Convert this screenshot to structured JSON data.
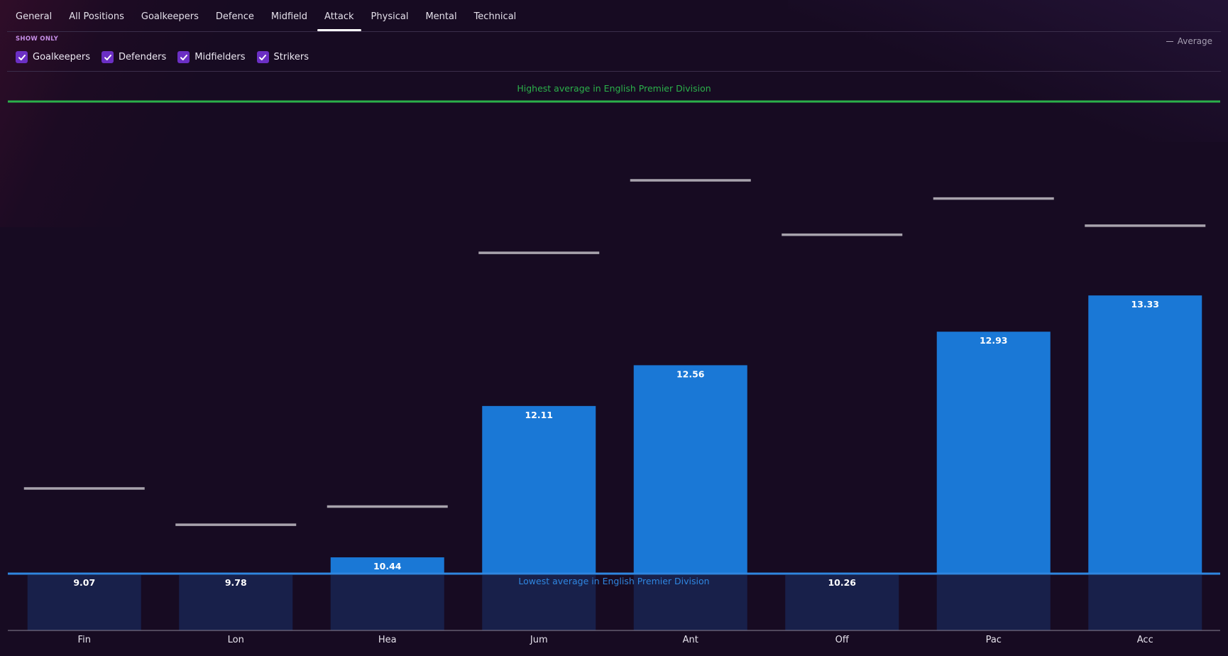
{
  "tabs": [
    {
      "label": "General",
      "active": false
    },
    {
      "label": "All Positions",
      "active": false
    },
    {
      "label": "Goalkeepers",
      "active": false
    },
    {
      "label": "Defence",
      "active": false
    },
    {
      "label": "Midfield",
      "active": false
    },
    {
      "label": "Attack",
      "active": true
    },
    {
      "label": "Physical",
      "active": false
    },
    {
      "label": "Mental",
      "active": false
    },
    {
      "label": "Technical",
      "active": false
    }
  ],
  "filters": {
    "title": "SHOW ONLY",
    "items": [
      {
        "label": "Goalkeepers",
        "checked": true
      },
      {
        "label": "Defenders",
        "checked": true
      },
      {
        "label": "Midfielders",
        "checked": true
      },
      {
        "label": "Strikers",
        "checked": true
      }
    ]
  },
  "legend": {
    "average_label": "Average"
  },
  "colors": {
    "bar": "#1a78d6",
    "bar_below_lowest": "#18204a",
    "highest_line": "#2bb04a",
    "lowest_line": "#2f86e0",
    "average_line": "#a8a3ad"
  },
  "chart_data": {
    "type": "bar",
    "categories": [
      "Fin",
      "Lon",
      "Hea",
      "Jum",
      "Ant",
      "Off",
      "Pac",
      "Acc"
    ],
    "values": [
      9.07,
      9.78,
      10.44,
      12.11,
      12.56,
      10.26,
      12.93,
      13.33
    ],
    "average": [
      11.2,
      10.8,
      11.0,
      13.8,
      14.6,
      14.0,
      14.4,
      14.1
    ],
    "highest_label": "Highest average in English Premier Division",
    "lowest_label": "Lowest average in English Premier Division",
    "legend_position": "top-right",
    "grid": false
  }
}
